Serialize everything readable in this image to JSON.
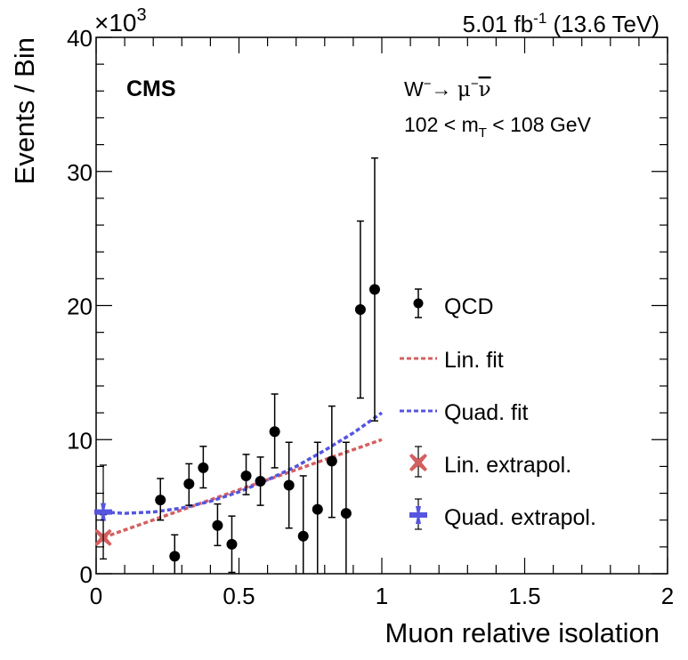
{
  "chart_data": {
    "type": "scatter",
    "title": "",
    "experiment_label": "CMS",
    "lumi_label": {
      "value": "5.01 fb",
      "sup": "-1",
      "energy": " (13.6 TeV)"
    },
    "process_label": {
      "w": "W",
      "w_sup": "−",
      "arrow": "→ ",
      "mu": "μ",
      "mu_sup": "−",
      "nu": "ν"
    },
    "region_label": {
      "pre": "102 < m",
      "sub": "T",
      "post": " < 108 GeV"
    },
    "xlabel": "Muon relative isolation",
    "ylabel": "Events / Bin",
    "y_multiplier": {
      "base": "×10",
      "exp": "3"
    },
    "xlim": [
      0,
      2
    ],
    "ylim": [
      0,
      40
    ],
    "x_ticks": [
      0,
      0.5,
      1,
      1.5,
      2
    ],
    "x_tick_labels": [
      "0",
      "0.5",
      "1",
      "1.5",
      "2"
    ],
    "y_ticks": [
      0,
      10,
      20,
      30,
      40
    ],
    "y_tick_labels": [
      "0",
      "10",
      "20",
      "30",
      "40"
    ],
    "grid": false,
    "legend_position": "right",
    "series": [
      {
        "name": "QCD",
        "kind": "points",
        "color": "#000000",
        "x": [
          0.225,
          0.275,
          0.325,
          0.375,
          0.425,
          0.475,
          0.525,
          0.575,
          0.625,
          0.675,
          0.725,
          0.775,
          0.825,
          0.875,
          0.925,
          0.975
        ],
        "y": [
          5.5,
          1.3,
          6.7,
          7.9,
          3.6,
          2.2,
          7.3,
          6.9,
          10.6,
          6.6,
          2.8,
          4.8,
          8.4,
          4.5,
          19.7,
          21.2
        ],
        "y_low": [
          4.0,
          0.0,
          5.1,
          6.4,
          2.1,
          0.1,
          5.9,
          5.1,
          7.9,
          3.4,
          0.0,
          0.0,
          4.2,
          0.0,
          13.1,
          11.4
        ],
        "y_high": [
          7.1,
          2.9,
          8.2,
          9.5,
          5.2,
          4.3,
          8.9,
          8.7,
          13.4,
          9.8,
          7.3,
          9.8,
          12.5,
          9.8,
          26.3,
          31.0
        ]
      },
      {
        "name": "Lin. fit",
        "kind": "line",
        "color": "#d45f5f",
        "x": [
          0.025,
          1.0
        ],
        "y": [
          2.7,
          10.0
        ]
      },
      {
        "name": "Quad. fit",
        "kind": "line",
        "color": "#5555e0",
        "x": [
          0.025,
          0.1,
          0.2,
          0.3,
          0.4,
          0.5,
          0.6,
          0.7,
          0.8,
          0.9,
          1.0
        ],
        "y": [
          4.6,
          4.5,
          4.6,
          4.9,
          5.4,
          6.1,
          7.0,
          8.0,
          9.2,
          10.5,
          12.0
        ]
      },
      {
        "name": "Lin. extrapol.",
        "kind": "marker-x",
        "color": "#d45f5f",
        "x": [
          0.025
        ],
        "y": [
          2.7
        ],
        "y_low": [
          1.1
        ],
        "y_high": [
          4.4
        ]
      },
      {
        "name": "Quad. extrapol.",
        "kind": "marker-star",
        "color": "#5555e0",
        "x": [
          0.025
        ],
        "y": [
          4.6
        ],
        "y_low": [
          1.1
        ],
        "y_high": [
          8.1
        ]
      }
    ],
    "legend": [
      "QCD",
      "Lin. fit",
      "Quad. fit",
      "Lin. extrapol.",
      "Quad. extrapol."
    ]
  }
}
